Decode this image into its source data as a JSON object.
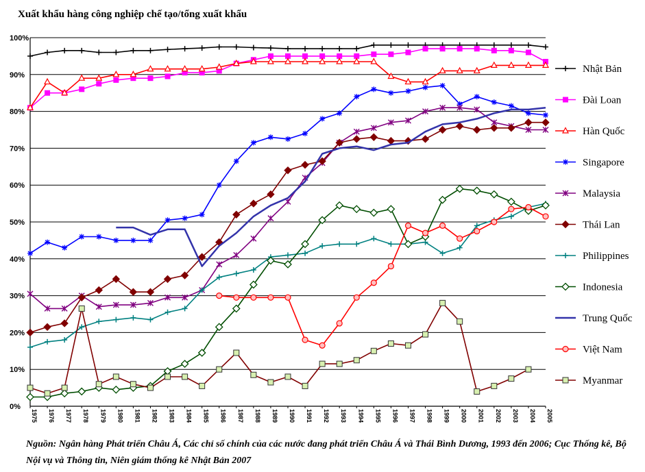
{
  "chart_data": {
    "type": "line",
    "title": "Xuất khẩu hàng công nghiệp chế tạo/tổng xuất khẩu",
    "y_tick_labels": [
      "0%",
      "10%",
      "20%",
      "30%",
      "40%",
      "50%",
      "60%",
      "70%",
      "80%",
      "90%",
      "100%"
    ],
    "ylim": [
      0,
      100
    ],
    "grid": "horizontal lines at every 10%",
    "legend_position": "right",
    "x": [
      1975,
      1976,
      1977,
      1978,
      1979,
      1980,
      1981,
      1982,
      1983,
      1984,
      1985,
      1986,
      1987,
      1988,
      1989,
      1990,
      1991,
      1992,
      1993,
      1994,
      1995,
      1996,
      1997,
      1998,
      1999,
      2000,
      2001,
      2002,
      2003,
      2004,
      2005
    ],
    "x_tick_labels": [
      "1975",
      "1976",
      "1977",
      "1978",
      "1979",
      "1980",
      "1981",
      "1982",
      "1983",
      "1984",
      "1985",
      "1986",
      "1987",
      "1988",
      "1989",
      "1990",
      "1991",
      "1992",
      "1993",
      "1994",
      "1995",
      "1996",
      "1997",
      "1998",
      "1999",
      "2000",
      "2001",
      "2002",
      "2003",
      "2004",
      "2005"
    ],
    "series": [
      {
        "name": "Nhật Bản",
        "color": "#000000",
        "marker": "plus",
        "values": [
          95,
          96,
          96.5,
          96.5,
          96,
          96,
          96.5,
          96.5,
          96.8,
          97,
          97.2,
          97.5,
          97.5,
          97.3,
          97.2,
          97,
          97,
          97,
          97,
          97,
          98,
          98,
          98,
          98,
          98,
          98,
          98,
          98,
          98,
          98,
          97.5
        ]
      },
      {
        "name": "Đài Loan",
        "color": "#ff00ff",
        "marker": "square",
        "values": [
          81,
          85,
          85,
          86,
          87.5,
          88.5,
          89,
          89,
          89.5,
          90.5,
          90.5,
          91,
          93,
          94,
          95,
          95,
          95,
          95,
          95,
          95,
          95.5,
          95.5,
          96,
          97,
          97,
          97,
          97,
          96.5,
          96.5,
          96,
          93.5
        ]
      },
      {
        "name": "Hàn Quốc",
        "color": "#ff0000",
        "marker": "triangle",
        "values": [
          81,
          88,
          85,
          89,
          89,
          90,
          90,
          91.5,
          91.5,
          91.5,
          91.5,
          92,
          93,
          93.5,
          93.5,
          93.5,
          93.5,
          93.5,
          93.5,
          93.5,
          93.5,
          89.5,
          88,
          88,
          91,
          91,
          91,
          92.5,
          92.5,
          92.5,
          92.5
        ]
      },
      {
        "name": "Singapore",
        "color": "#0000ff",
        "marker": "star",
        "values": [
          41.5,
          44.5,
          43,
          46,
          46,
          45,
          45,
          45,
          50.5,
          51,
          52,
          60,
          66.5,
          71.5,
          73,
          72.5,
          74,
          78,
          79.5,
          84,
          86,
          85,
          85.5,
          86.5,
          87,
          82,
          84,
          82.5,
          81.5,
          79.5,
          79
        ]
      },
      {
        "name": "Malaysia",
        "color": "#800080",
        "marker": "x",
        "values": [
          30.5,
          26.5,
          26.5,
          30,
          27,
          27.5,
          27.5,
          28,
          29.5,
          29.5,
          31.5,
          38.5,
          41,
          45.5,
          51,
          55.5,
          62,
          66,
          71.5,
          74.5,
          75.5,
          77,
          77.5,
          80,
          81,
          81,
          80.5,
          77,
          76,
          75,
          75
        ]
      },
      {
        "name": "Thái Lan",
        "color": "#800000",
        "marker": "diamond",
        "values": [
          20,
          21.5,
          22.5,
          29.5,
          31.5,
          34.5,
          31,
          31,
          34.5,
          35.5,
          40.5,
          44.5,
          52,
          55,
          57.5,
          64,
          65.5,
          66.5,
          71.5,
          72.5,
          73,
          72,
          72,
          72.5,
          75,
          76,
          75,
          75.5,
          75.5,
          77,
          77
        ]
      },
      {
        "name": "Philippines",
        "color": "#008080",
        "marker": "plus",
        "values": [
          16,
          17.5,
          18,
          21.5,
          23,
          23.5,
          24,
          23.5,
          25.5,
          26.5,
          31.5,
          35,
          36,
          37,
          40.5,
          41,
          41.5,
          43.5,
          44,
          44,
          45.5,
          44,
          44,
          44.5,
          41.5,
          43,
          49,
          50.5,
          51.5,
          54,
          55
        ]
      },
      {
        "name": "Indonesia",
        "color": "#004d00",
        "marker": "diamond-open",
        "values": [
          2.5,
          2.5,
          3.5,
          4,
          5,
          4.5,
          5,
          5.5,
          9.5,
          11.5,
          14.5,
          21.5,
          26.5,
          33,
          39.5,
          38.5,
          44,
          50.5,
          54.5,
          53.5,
          52.5,
          53.5,
          44,
          46,
          56,
          59,
          58.5,
          57.5,
          55.5,
          53,
          54.5
        ]
      },
      {
        "name": "Trung Quốc",
        "color": "#3333aa",
        "marker": "none",
        "values": [
          null,
          null,
          null,
          null,
          null,
          48.5,
          48.5,
          46.5,
          48,
          48,
          38,
          43.5,
          47,
          51.5,
          54.5,
          56.5,
          61,
          68.5,
          70,
          70.5,
          69.5,
          71,
          71.5,
          74.5,
          76.5,
          77,
          78,
          79.5,
          80.5,
          80.5,
          81
        ]
      },
      {
        "name": "Việt Nam",
        "color": "#ff0000",
        "marker": "circle",
        "values": [
          null,
          null,
          null,
          null,
          null,
          null,
          null,
          null,
          null,
          null,
          null,
          30,
          29.5,
          29.5,
          29.5,
          29.5,
          18,
          16.5,
          22.5,
          29.5,
          33.5,
          38,
          49,
          47,
          49,
          45.5,
          47.5,
          50,
          53.5,
          54,
          51.5
        ]
      },
      {
        "name": "Myanmar",
        "color": "#800000",
        "marker": "square-open",
        "values": [
          5,
          3.5,
          5,
          26.5,
          6,
          8,
          6,
          5,
          8,
          8,
          5.5,
          10,
          14.5,
          8.5,
          6.5,
          8,
          5.5,
          11.5,
          11.5,
          12.5,
          15,
          17,
          16.5,
          19.5,
          28,
          23,
          4,
          5.5,
          7.5,
          10,
          null
        ]
      }
    ]
  },
  "source_text": "Nguồn: Ngân hàng Phát triển Châu Á, Các chỉ số chính của các nước đang phát triển Châu Á và Thái Bình Dương, 1993 đến 2006; Cục Thống kê, Bộ Nội vụ và Thông tin, Niên giám thống kê Nhật Bản 2007"
}
